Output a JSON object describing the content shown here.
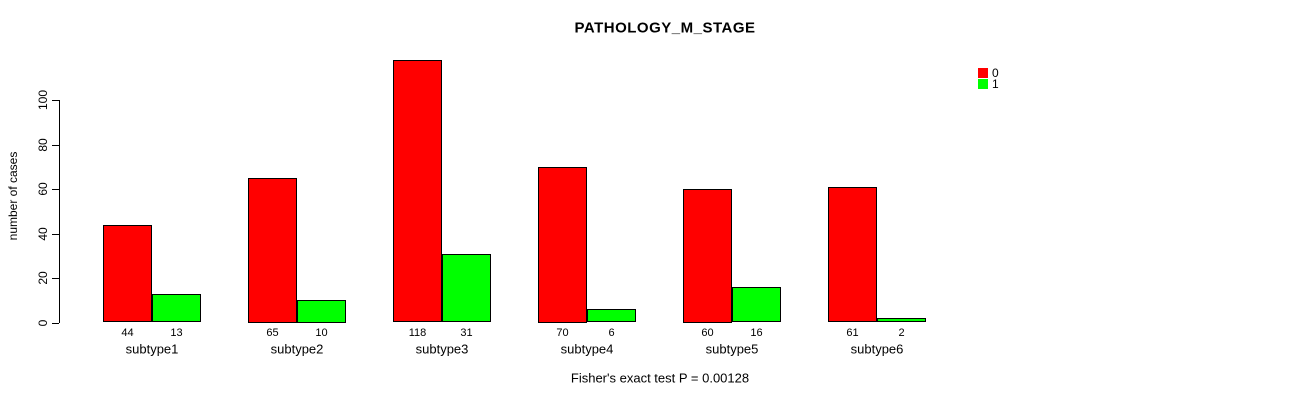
{
  "chart_data": {
    "type": "bar",
    "title": "PATHOLOGY_M_STAGE",
    "xlabel": "",
    "ylabel": "number of cases",
    "categories": [
      "subtype1",
      "subtype2",
      "subtype3",
      "subtype4",
      "subtype5",
      "subtype6"
    ],
    "series": [
      {
        "name": "0",
        "color": "#ff0000",
        "values": [
          44,
          65,
          118,
          70,
          60,
          61
        ]
      },
      {
        "name": "1",
        "color": "#00ff00",
        "values": [
          13,
          10,
          31,
          6,
          16,
          2
        ]
      }
    ],
    "yticks": [
      0,
      20,
      40,
      60,
      80,
      100
    ],
    "ylim": [
      0,
      100
    ],
    "grid": false,
    "legend_position": "top-right",
    "bar_value_labels": true,
    "annotation": "Fisher's exact test P = 0.00128"
  }
}
